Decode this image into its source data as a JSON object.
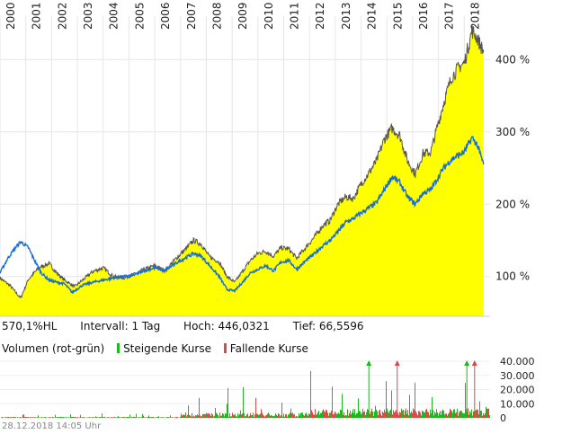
{
  "info": {
    "hl": "570,1%HL",
    "interval": "Intervall: 1 Tag",
    "high": "Hoch: 446,0321",
    "low": "Tief: 66,5596"
  },
  "volume_legend": {
    "title": "Volumen (rot-grün)",
    "rising": "Steigende Kurse",
    "falling": "Fallende Kurse",
    "rising_color": "#1fb81f",
    "falling_color": "#e04848"
  },
  "footer": {
    "timestamp": "28.12.2018 14:05 Uhr"
  },
  "colors": {
    "area_fill": "#ffff00",
    "stock_line": "#555555",
    "index_line": "#1a6fd1",
    "grid": "#e6e6e6"
  },
  "chart_data": [
    {
      "type": "area",
      "x_ticks": [
        "2000",
        "2001",
        "2002",
        "2003",
        "2004",
        "2005",
        "2006",
        "2007",
        "2008",
        "2009",
        "2010",
        "2011",
        "2012",
        "2013",
        "2014",
        "2015",
        "2016",
        "2017",
        "2018"
      ],
      "y_ticks": [
        "100 %",
        "200 %",
        "300 %",
        "400 %"
      ],
      "ylim": [
        45,
        460
      ],
      "xlim": [
        2000.0,
        2019.0
      ],
      "series": [
        {
          "points": [
            [
              2000.0,
              98
            ],
            [
              2000.4,
              87
            ],
            [
              2000.8,
              70
            ],
            [
              2001.1,
              96
            ],
            [
              2001.5,
              112
            ],
            [
              2001.9,
              118
            ],
            [
              2002.2,
              105
            ],
            [
              2002.5,
              95
            ],
            [
              2002.9,
              86
            ],
            [
              2003.2,
              95
            ],
            [
              2003.6,
              107
            ],
            [
              2004.0,
              112
            ],
            [
              2004.4,
              100
            ],
            [
              2004.8,
              98
            ],
            [
              2005.2,
              103
            ],
            [
              2005.6,
              110
            ],
            [
              2006.0,
              115
            ],
            [
              2006.4,
              108
            ],
            [
              2006.8,
              124
            ],
            [
              2007.2,
              138
            ],
            [
              2007.5,
              150
            ],
            [
              2007.8,
              145
            ],
            [
              2008.1,
              128
            ],
            [
              2008.5,
              120
            ],
            [
              2008.8,
              100
            ],
            [
              2009.1,
              92
            ],
            [
              2009.4,
              107
            ],
            [
              2009.7,
              122
            ],
            [
              2010.0,
              132
            ],
            [
              2010.3,
              135
            ],
            [
              2010.6,
              128
            ],
            [
              2010.9,
              140
            ],
            [
              2011.2,
              138
            ],
            [
              2011.5,
              125
            ],
            [
              2011.8,
              138
            ],
            [
              2012.2,
              155
            ],
            [
              2012.5,
              170
            ],
            [
              2012.8,
              178
            ],
            [
              2013.1,
              200
            ],
            [
              2013.4,
              210
            ],
            [
              2013.7,
              208
            ],
            [
              2014.0,
              228
            ],
            [
              2014.3,
              243
            ],
            [
              2014.6,
              260
            ],
            [
              2014.9,
              290
            ],
            [
              2015.2,
              305
            ],
            [
              2015.5,
              295
            ],
            [
              2015.8,
              260
            ],
            [
              2016.1,
              242
            ],
            [
              2016.4,
              270
            ],
            [
              2016.7,
              272
            ],
            [
              2016.9,
              300
            ],
            [
              2017.2,
              340
            ],
            [
              2017.5,
              375
            ],
            [
              2017.8,
              390
            ],
            [
              2018.0,
              395
            ],
            [
              2018.3,
              440
            ],
            [
              2018.5,
              430
            ],
            [
              2018.75,
              410
            ]
          ]
        },
        {
          "points": [
            [
              2000.0,
              105
            ],
            [
              2000.3,
              125
            ],
            [
              2000.6,
              140
            ],
            [
              2000.8,
              148
            ],
            [
              2001.1,
              140
            ],
            [
              2001.3,
              125
            ],
            [
              2001.6,
              105
            ],
            [
              2001.9,
              95
            ],
            [
              2002.2,
              92
            ],
            [
              2002.5,
              90
            ],
            [
              2002.8,
              78
            ],
            [
              2003.2,
              88
            ],
            [
              2003.6,
              92
            ],
            [
              2004.0,
              95
            ],
            [
              2004.4,
              98
            ],
            [
              2004.8,
              100
            ],
            [
              2005.2,
              102
            ],
            [
              2005.6,
              108
            ],
            [
              2006.0,
              112
            ],
            [
              2006.4,
              108
            ],
            [
              2006.8,
              118
            ],
            [
              2007.2,
              126
            ],
            [
              2007.5,
              132
            ],
            [
              2007.8,
              128
            ],
            [
              2008.1,
              116
            ],
            [
              2008.5,
              100
            ],
            [
              2008.8,
              82
            ],
            [
              2009.1,
              80
            ],
            [
              2009.4,
              92
            ],
            [
              2009.7,
              105
            ],
            [
              2010.0,
              110
            ],
            [
              2010.3,
              115
            ],
            [
              2010.6,
              108
            ],
            [
              2010.9,
              120
            ],
            [
              2011.2,
              122
            ],
            [
              2011.5,
              110
            ],
            [
              2011.8,
              120
            ],
            [
              2012.2,
              132
            ],
            [
              2012.5,
              142
            ],
            [
              2012.8,
              150
            ],
            [
              2013.1,
              162
            ],
            [
              2013.4,
              175
            ],
            [
              2013.7,
              180
            ],
            [
              2014.0,
              188
            ],
            [
              2014.3,
              195
            ],
            [
              2014.6,
              202
            ],
            [
              2014.9,
              220
            ],
            [
              2015.2,
              238
            ],
            [
              2015.5,
              230
            ],
            [
              2015.8,
              210
            ],
            [
              2016.1,
              200
            ],
            [
              2016.4,
              215
            ],
            [
              2016.7,
              220
            ],
            [
              2016.9,
              232
            ],
            [
              2017.2,
              250
            ],
            [
              2017.5,
              262
            ],
            [
              2017.8,
              268
            ],
            [
              2018.0,
              272
            ],
            [
              2018.3,
              292
            ],
            [
              2018.5,
              282
            ],
            [
              2018.75,
              255
            ]
          ]
        }
      ]
    },
    {
      "type": "bar",
      "y_ticks": [
        "40.000",
        "30.000",
        "20.000",
        "10.000",
        "0"
      ],
      "ylim": [
        0,
        40000
      ],
      "xlim": [
        2000.0,
        2019.0
      ],
      "spikes": [
        [
          2014.3,
          40000,
          "rising"
        ],
        [
          2015.4,
          40000,
          "falling"
        ],
        [
          2018.1,
          40000,
          "rising"
        ],
        [
          2018.4,
          40000,
          "falling"
        ]
      ]
    }
  ]
}
